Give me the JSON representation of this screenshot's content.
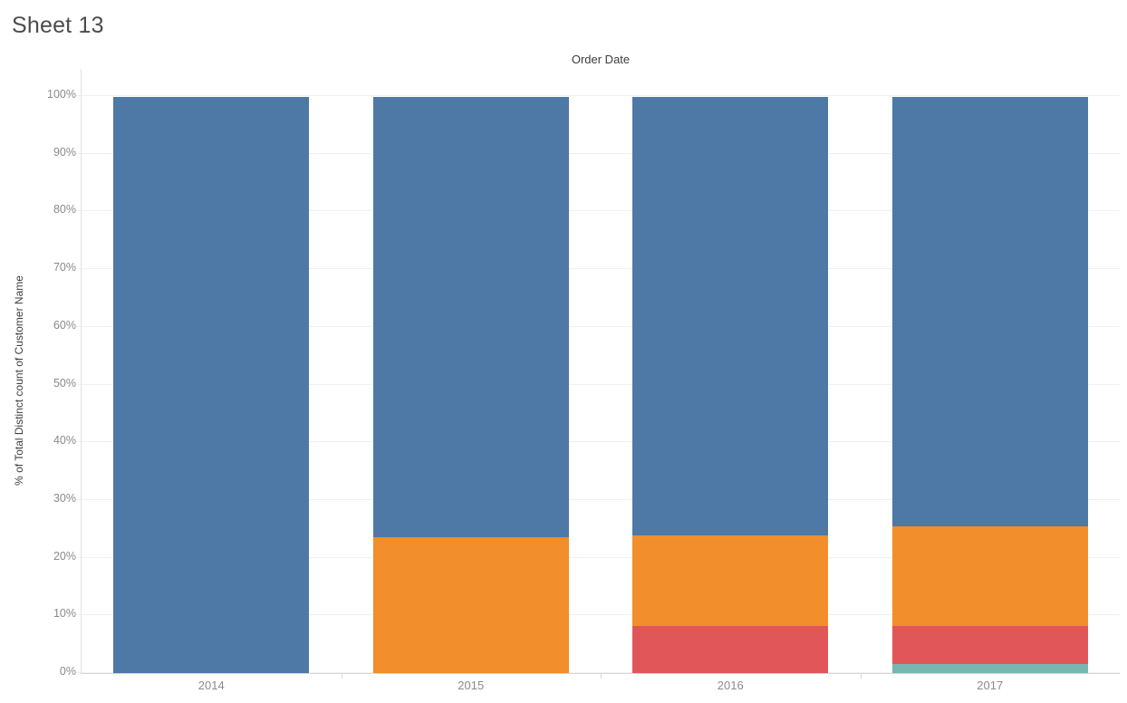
{
  "sheet_title": "Sheet 13",
  "chart_data": {
    "type": "bar",
    "stacked": true,
    "orientation": "vertical",
    "title": "Order Date",
    "xlabel": "",
    "ylabel": "% of Total Distinct count of Customer Name",
    "categories": [
      "2014",
      "2015",
      "2016",
      "2017"
    ],
    "series": [
      {
        "name": "segment-blue",
        "color": "#4E79A7",
        "values": [
          100,
          76.4,
          76.1,
          74.6
        ]
      },
      {
        "name": "segment-orange",
        "color": "#F28E2B",
        "values": [
          0,
          23.6,
          15.8,
          17.3
        ]
      },
      {
        "name": "segment-red",
        "color": "#E15759",
        "values": [
          0,
          0,
          8.1,
          6.6
        ]
      },
      {
        "name": "segment-teal",
        "color": "#76B7B2",
        "values": [
          0,
          0,
          0,
          1.5
        ]
      }
    ],
    "yticks": [
      "0%",
      "10%",
      "20%",
      "30%",
      "40%",
      "50%",
      "60%",
      "70%",
      "80%",
      "90%",
      "100%"
    ],
    "ylim": [
      0,
      100
    ],
    "grid": true,
    "legend": "none"
  },
  "colors": {
    "background": "#ffffff",
    "title_text": "#4c4c4c",
    "header_text": "#3c3c3c",
    "tick_text": "#8a8a8a",
    "gridline": "#f0f0f0",
    "axis_line": "#d8d8d8"
  }
}
